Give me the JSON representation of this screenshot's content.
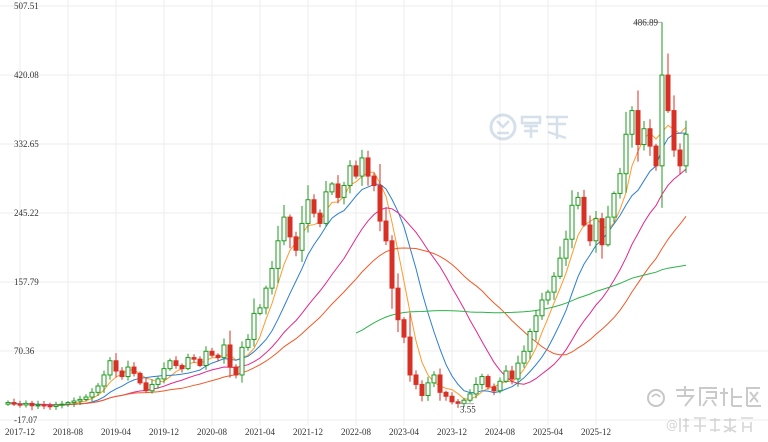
{
  "chart_data": {
    "type": "candlestick",
    "ylim": [
      -17.07,
      507.51
    ],
    "y_ticks": [
      -17.07,
      70.36,
      157.79,
      245.22,
      332.65,
      420.08,
      507.51
    ],
    "y_tick_labels": [
      "-17.07",
      "70.36",
      "157.79",
      "245.22",
      "332.65",
      "420.08",
      "507.51"
    ],
    "x_tick_labels": [
      "2017-12",
      "2018-08",
      "2019-04",
      "2019-12",
      "2020-08",
      "2021-04",
      "2021-12",
      "2022-08",
      "2023-04",
      "2023-12",
      "2024-08",
      "2025-04",
      "2025-12"
    ],
    "annotations": {
      "max_label": "486.89",
      "min_label": "3.55"
    },
    "grid": true,
    "colors": {
      "up": "#1f9a1f",
      "down": "#d93025",
      "ma5": "#ff9a2e",
      "ma10": "#2c7fcf",
      "ma20": "#e0288c",
      "ma30": "#f05a28",
      "ma60": "#2db34a",
      "grid": "#ececec"
    },
    "start_month": "2017-10",
    "close": [
      5,
      3,
      2,
      4,
      1,
      2,
      1,
      0,
      2,
      3,
      5,
      7,
      9,
      12,
      18,
      26,
      40,
      58,
      45,
      38,
      50,
      42,
      30,
      20,
      28,
      35,
      48,
      58,
      52,
      48,
      62,
      60,
      52,
      70,
      65,
      62,
      78,
      50,
      40,
      75,
      85,
      118,
      125,
      150,
      175,
      210,
      240,
      215,
      198,
      232,
      262,
      245,
      232,
      272,
      282,
      265,
      280,
      305,
      292,
      315,
      292,
      280,
      235,
      210,
      150,
      110,
      88,
      40,
      28,
      14,
      30,
      40,
      18,
      13,
      6,
      4,
      8,
      16,
      28,
      38,
      25,
      20,
      32,
      45,
      35,
      55,
      70,
      95,
      115,
      135,
      145,
      165,
      188,
      212,
      255,
      265,
      230,
      210,
      238,
      205,
      240,
      270,
      295,
      345,
      375,
      332,
      352,
      330,
      305,
      420,
      375,
      325,
      305,
      345
    ],
    "ma5_samples": [
      3,
      3,
      2,
      2,
      2,
      3,
      10,
      30,
      45,
      40,
      32,
      38,
      50,
      52,
      56,
      60,
      65,
      62,
      75,
      110,
      160,
      215,
      230,
      240,
      262,
      278,
      290,
      298,
      300,
      280,
      240,
      170,
      90,
      40,
      20,
      15,
      10,
      20,
      35,
      50,
      70,
      100,
      140,
      190,
      230,
      240,
      280,
      330,
      350,
      345
    ],
    "ma60_samples": [
      157,
      160,
      148,
      123,
      105,
      100,
      98,
      102,
      113,
      125,
      142,
      158,
      165
    ]
  }
}
